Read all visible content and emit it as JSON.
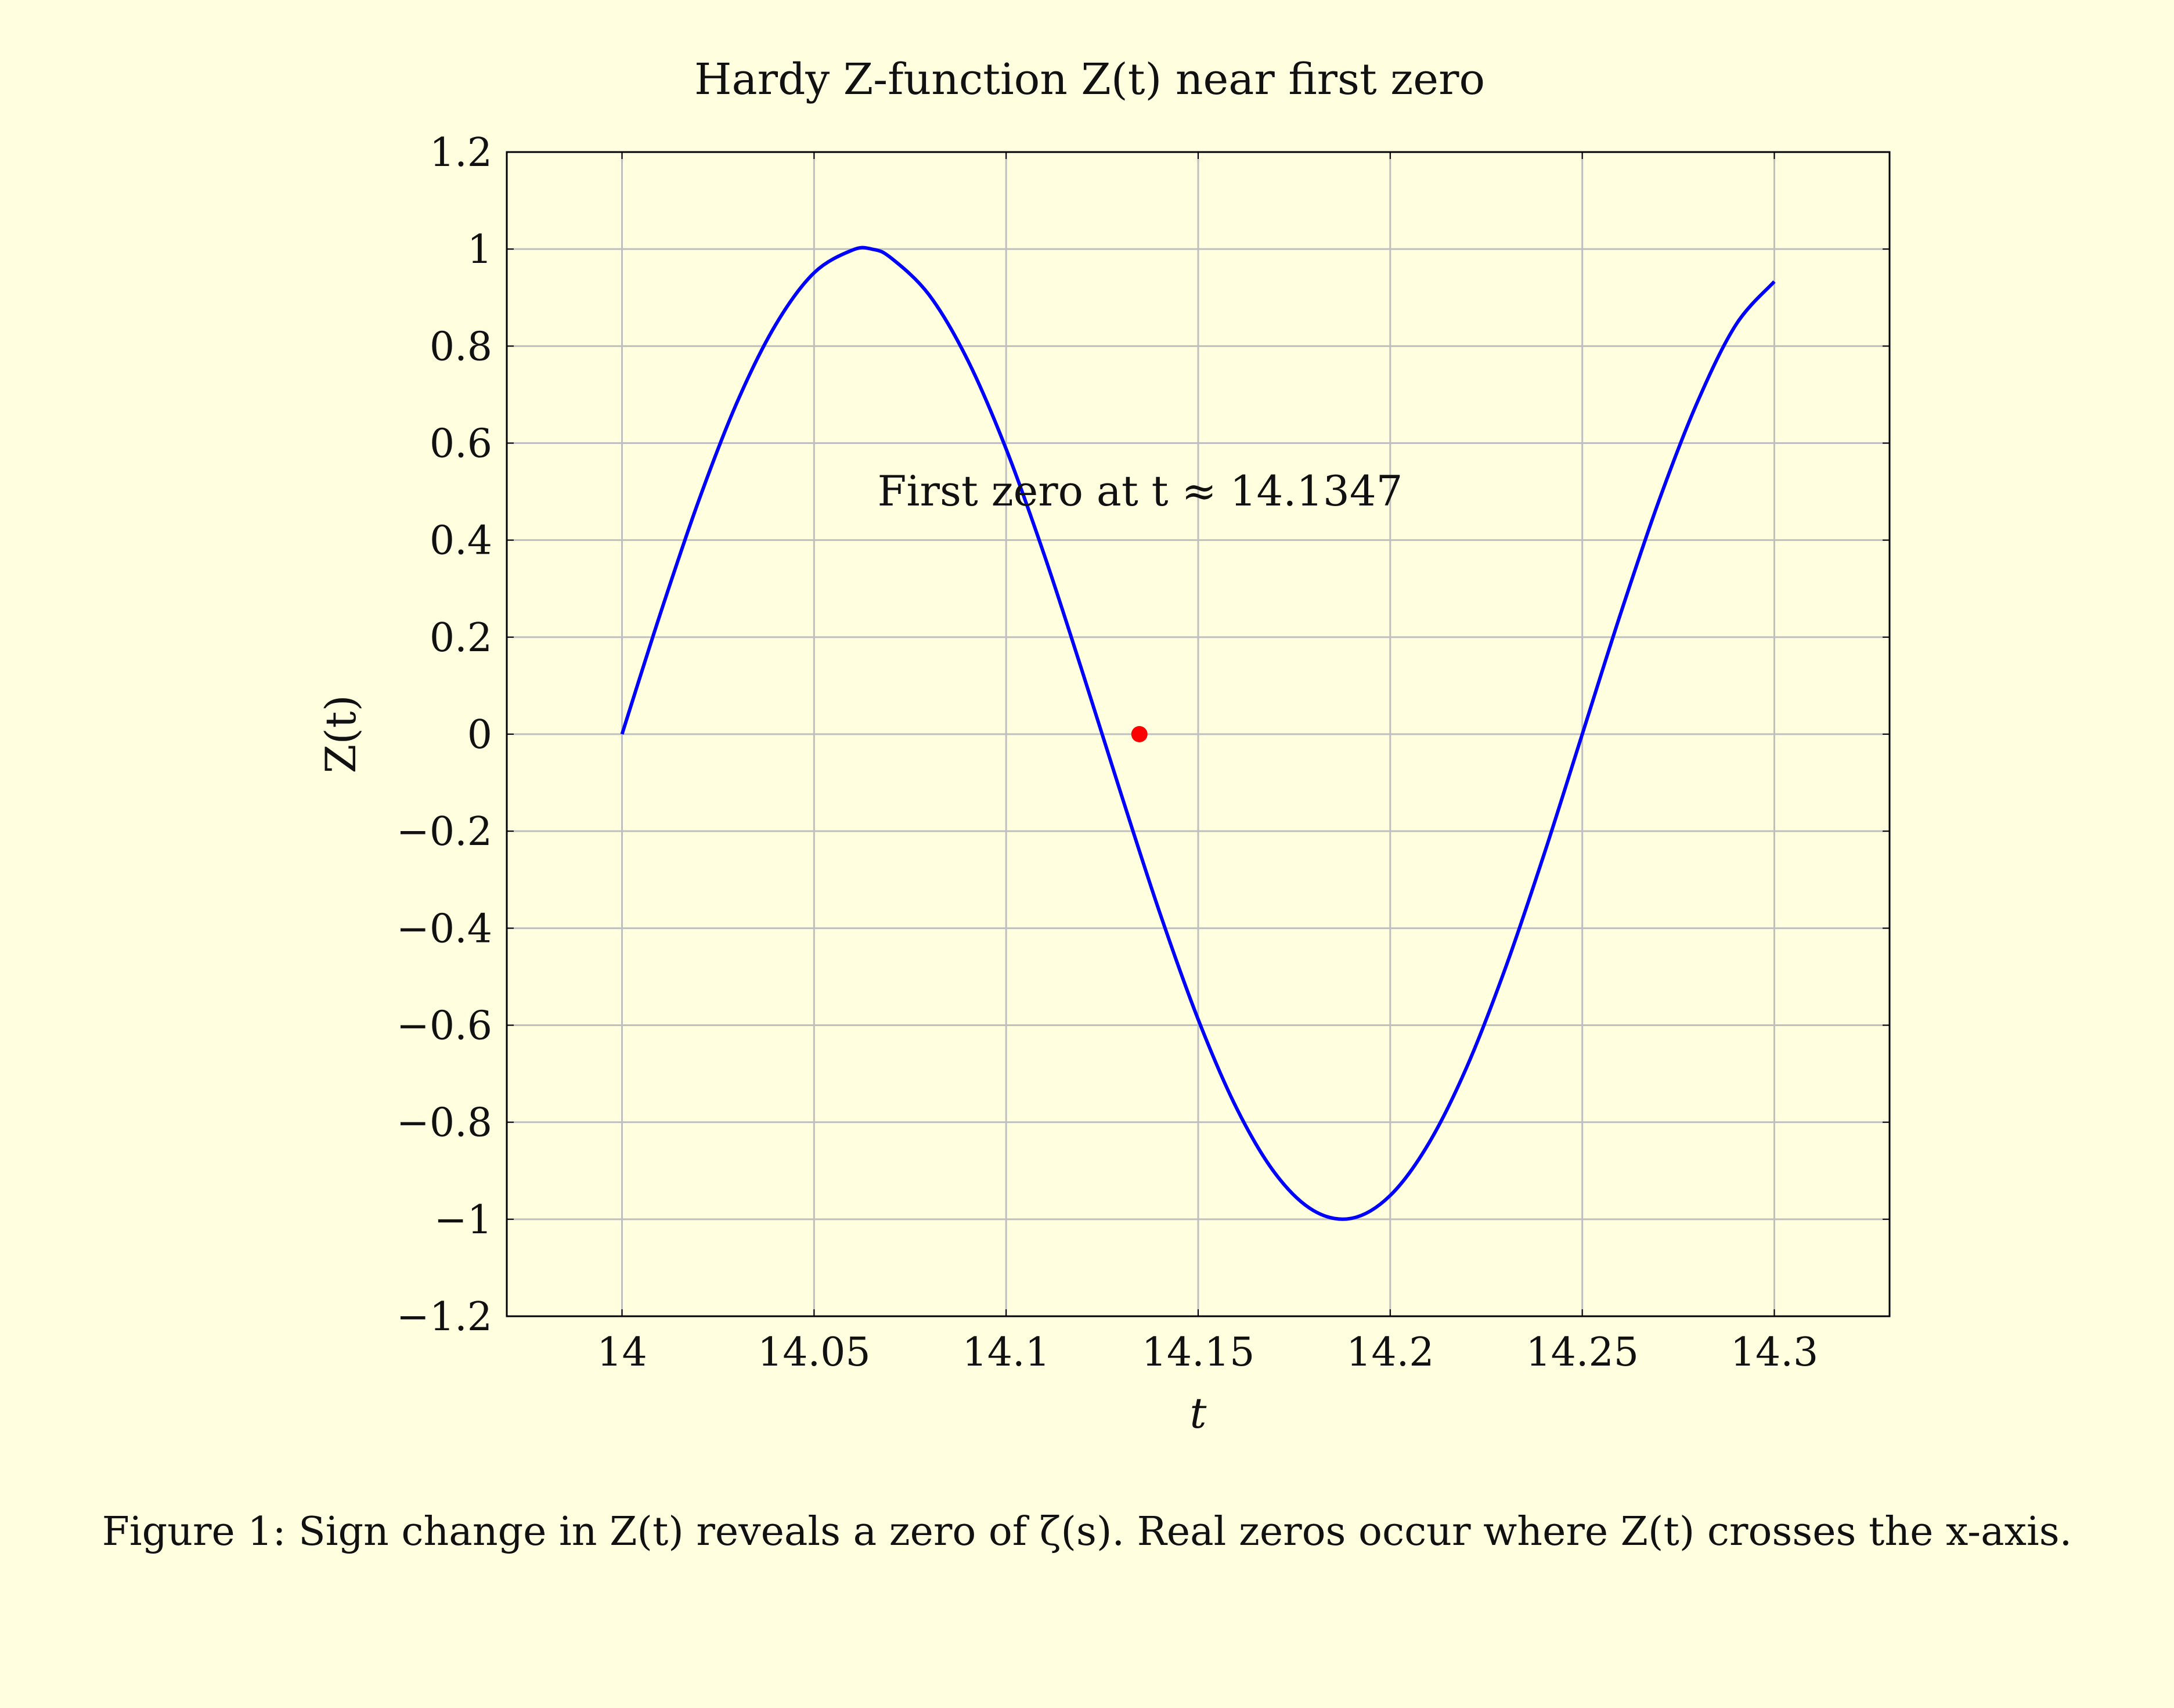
{
  "chart_data": {
    "type": "line",
    "title": "Hardy Z-function Z(t) near first zero",
    "xlabel": "t",
    "ylabel": "Z(t)",
    "xlim": [
      13.97,
      14.33
    ],
    "ylim": [
      -1.2,
      1.2
    ],
    "x_ticks": [
      14,
      14.05,
      14.1,
      14.15,
      14.2,
      14.25,
      14.3
    ],
    "x_tick_labels": [
      "14",
      "14.05",
      "14.1",
      "14.15",
      "14.2",
      "14.25",
      "14.3"
    ],
    "y_ticks": [
      1.2,
      1,
      0.8,
      0.6,
      0.4,
      0.2,
      0,
      -0.2,
      -0.4,
      -0.6,
      -0.8,
      -1,
      -1.2
    ],
    "y_tick_labels": [
      "1.2",
      "1",
      "0.8",
      "0.6",
      "0.4",
      "0.2",
      "0",
      "−0.2",
      "−0.4",
      "−0.6",
      "−0.8",
      "−1",
      "−1.2"
    ],
    "grid": true,
    "series": [
      {
        "color": "#0000ff",
        "x": [
          14.0,
          14.01,
          14.02,
          14.03,
          14.04,
          14.05,
          14.06,
          14.065,
          14.07,
          14.08,
          14.09,
          14.1,
          14.11,
          14.12,
          14.13,
          14.14,
          14.15,
          14.16,
          14.17,
          14.18,
          14.19,
          14.2,
          14.21,
          14.22,
          14.23,
          14.24,
          14.25,
          14.26,
          14.27,
          14.28,
          14.29,
          14.3
        ],
        "y": [
          0.0,
          0.249,
          0.482,
          0.685,
          0.844,
          0.951,
          0.998,
          1.0,
          0.982,
          0.905,
          0.771,
          0.588,
          0.368,
          0.125,
          -0.125,
          -0.368,
          -0.588,
          -0.771,
          -0.905,
          -0.982,
          -0.998,
          -0.951,
          -0.844,
          -0.685,
          -0.482,
          -0.249,
          0.0,
          0.249,
          0.482,
          0.685,
          0.844,
          0.933
        ]
      }
    ],
    "marker": {
      "x": 14.1347,
      "y": 0,
      "color": "#ff0000"
    },
    "annotation": {
      "text": "First zero at t ≈ 14.1347",
      "x": 14.135,
      "y": 0.5
    }
  },
  "caption": "Figure 1: Sign change in Z(t) reveals a zero of ζ(s). Real zeros occur where Z(t) crosses the x-axis."
}
